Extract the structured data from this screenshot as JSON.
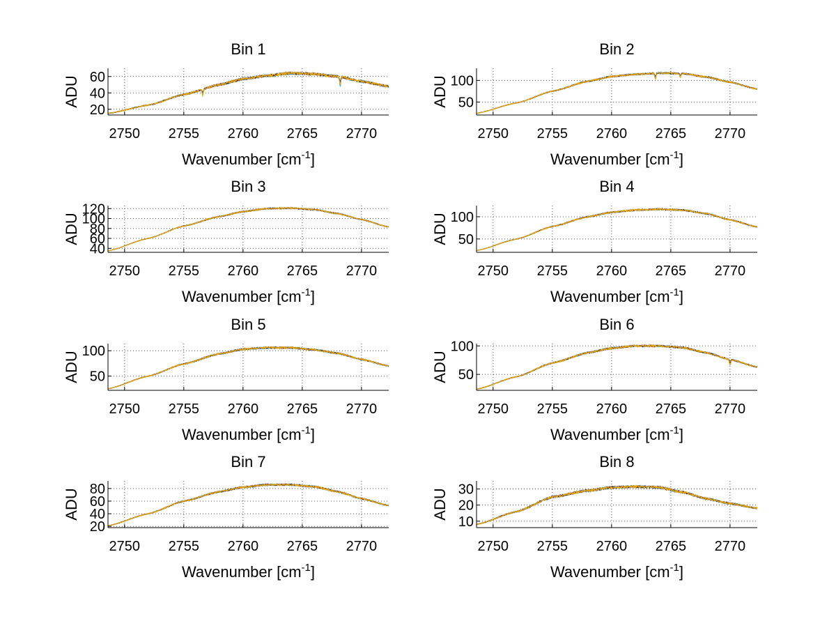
{
  "colors": {
    "series": [
      "#0b3e96",
      "#12a3c9",
      "#7a1d2c",
      "#2a2a2a",
      "#e8a80f"
    ],
    "grid": "#555555",
    "axis": "#000000"
  },
  "chart_data": [
    {
      "type": "line",
      "title": "Bin 1",
      "xlabel": "Wavenumber [cm",
      "xlabel_sup": "-1",
      "xlabel_end": "]",
      "ylabel": "ADU",
      "xlim": [
        2748.6,
        2772.3
      ],
      "ylim": [
        13,
        70
      ],
      "xticks": [
        2750,
        2755,
        2760,
        2765,
        2770
      ],
      "yticks": [
        20,
        40,
        60
      ],
      "shape": {
        "x": [
          2748.6,
          2752,
          2755,
          2758,
          2760,
          2762,
          2764,
          2766,
          2768,
          2770,
          2772.3
        ],
        "y": [
          15,
          25,
          38,
          50,
          57,
          61,
          64,
          63,
          60,
          54,
          48
        ]
      },
      "noise": 1.2,
      "dips": [
        {
          "x": 2756.6,
          "d": 7
        },
        {
          "x": 2768.2,
          "d": 10
        }
      ]
    },
    {
      "type": "line",
      "title": "Bin 2",
      "xlabel": "Wavenumber [cm",
      "xlabel_sup": "-1",
      "xlabel_end": "]",
      "ylabel": "ADU",
      "xlim": [
        2748.6,
        2772.3
      ],
      "ylim": [
        20,
        128
      ],
      "xticks": [
        2750,
        2755,
        2760,
        2765,
        2770
      ],
      "yticks": [
        50,
        100
      ],
      "shape": {
        "x": [
          2748.6,
          2752,
          2755,
          2758,
          2760,
          2762,
          2764,
          2766,
          2768,
          2770,
          2772.3
        ],
        "y": [
          24,
          48,
          75,
          98,
          109,
          114,
          117,
          116,
          108,
          96,
          80
        ]
      },
      "noise": 1.4,
      "dips": [
        {
          "x": 2763.7,
          "d": 14
        },
        {
          "x": 2765.8,
          "d": 8
        }
      ]
    },
    {
      "type": "line",
      "title": "Bin 3",
      "xlabel": "Wavenumber [cm",
      "xlabel_sup": "-1",
      "xlabel_end": "]",
      "ylabel": "ADU",
      "xlim": [
        2748.6,
        2772.3
      ],
      "ylim": [
        32,
        126
      ],
      "xticks": [
        2750,
        2755,
        2760,
        2765,
        2770
      ],
      "yticks": [
        40,
        60,
        80,
        100,
        120
      ],
      "shape": {
        "x": [
          2748.6,
          2752,
          2755,
          2758,
          2760,
          2762,
          2764,
          2766,
          2768,
          2770,
          2772.3
        ],
        "y": [
          35,
          60,
          85,
          104,
          114,
          120,
          121,
          118,
          110,
          98,
          83
        ]
      },
      "noise": 1.0,
      "dips": []
    },
    {
      "type": "line",
      "title": "Bin 4",
      "xlabel": "Wavenumber [cm",
      "xlabel_sup": "-1",
      "xlabel_end": "]",
      "ylabel": "ADU",
      "xlim": [
        2748.6,
        2772.3
      ],
      "ylim": [
        20,
        125
      ],
      "xticks": [
        2750,
        2755,
        2760,
        2765,
        2770
      ],
      "yticks": [
        50,
        100
      ],
      "shape": {
        "x": [
          2748.6,
          2752,
          2755,
          2758,
          2760,
          2762,
          2764,
          2766,
          2768,
          2770,
          2772.3
        ],
        "y": [
          24,
          50,
          78,
          100,
          110,
          115,
          117,
          115,
          107,
          93,
          77
        ]
      },
      "noise": 1.3,
      "dips": []
    },
    {
      "type": "line",
      "title": "Bin 5",
      "xlabel": "Wavenumber [cm",
      "xlabel_sup": "-1",
      "xlabel_end": "]",
      "ylabel": "ADU",
      "xlim": [
        2748.6,
        2772.3
      ],
      "ylim": [
        22,
        114
      ],
      "xticks": [
        2750,
        2755,
        2760,
        2765,
        2770
      ],
      "yticks": [
        50,
        100
      ],
      "shape": {
        "x": [
          2748.6,
          2752,
          2755,
          2758,
          2760,
          2762,
          2764,
          2766,
          2768,
          2770,
          2772.3
        ],
        "y": [
          25,
          50,
          74,
          94,
          103,
          106,
          106,
          102,
          95,
          83,
          70
        ]
      },
      "noise": 1.3,
      "dips": []
    },
    {
      "type": "line",
      "title": "Bin 6",
      "xlabel": "Wavenumber [cm",
      "xlabel_sup": "-1",
      "xlabel_end": "]",
      "ylabel": "ADU",
      "xlim": [
        2748.6,
        2772.3
      ],
      "ylim": [
        22,
        104
      ],
      "xticks": [
        2750,
        2755,
        2760,
        2765,
        2770
      ],
      "yticks": [
        50,
        100
      ],
      "shape": {
        "x": [
          2748.6,
          2752,
          2755,
          2758,
          2760,
          2762,
          2764,
          2766,
          2768,
          2770,
          2772.3
        ],
        "y": [
          24,
          46,
          70,
          88,
          96,
          100,
          100,
          97,
          88,
          76,
          63
        ]
      },
      "noise": 1.2,
      "dips": [
        {
          "x": 2770.0,
          "d": 9
        }
      ]
    },
    {
      "type": "line",
      "title": "Bin 7",
      "xlabel": "Wavenumber [cm",
      "xlabel_sup": "-1",
      "xlabel_end": "]",
      "ylabel": "ADU",
      "xlim": [
        2748.6,
        2772.3
      ],
      "ylim": [
        18,
        92
      ],
      "xticks": [
        2750,
        2755,
        2760,
        2765,
        2770
      ],
      "yticks": [
        20,
        40,
        60,
        80
      ],
      "shape": {
        "x": [
          2748.6,
          2752,
          2755,
          2758,
          2760,
          2762,
          2764,
          2766,
          2768,
          2770,
          2772.3
        ],
        "y": [
          21,
          40,
          60,
          75,
          82,
          86,
          86,
          83,
          75,
          64,
          53
        ]
      },
      "noise": 1.1,
      "dips": []
    },
    {
      "type": "line",
      "title": "Bin 8",
      "xlabel": "Wavenumber [cm",
      "xlabel_sup": "-1",
      "xlabel_end": "]",
      "ylabel": "ADU",
      "xlim": [
        2748.6,
        2772.3
      ],
      "ylim": [
        6,
        35
      ],
      "xticks": [
        2750,
        2755,
        2760,
        2765,
        2770
      ],
      "yticks": [
        10,
        20,
        30
      ],
      "shape": {
        "x": [
          2748.6,
          2752,
          2755,
          2758,
          2760,
          2762,
          2764,
          2766,
          2768,
          2770,
          2772.3
        ],
        "y": [
          8,
          16,
          25,
          29,
          31,
          31.5,
          31,
          28,
          24,
          21,
          18
        ]
      },
      "noise": 0.6,
      "dips": []
    }
  ]
}
